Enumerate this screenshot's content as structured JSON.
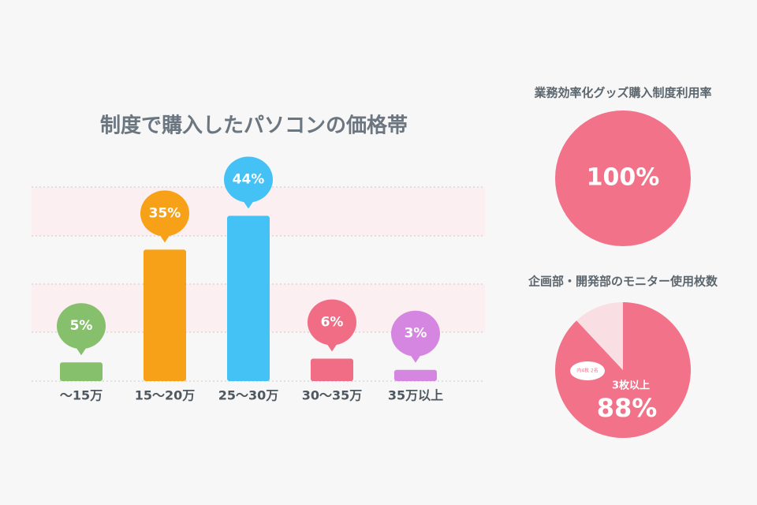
{
  "chart_data": [
    {
      "type": "bar",
      "title": "制度で購入したパソコンの価格帯",
      "categories": [
        "～15万",
        "15～20万",
        "25～30万",
        "30～35万",
        "35万以上"
      ],
      "values": [
        5,
        35,
        44,
        6,
        3
      ],
      "value_labels": [
        "5%",
        "35%",
        "44%",
        "6%",
        "3%"
      ],
      "colors": [
        "#86c06c",
        "#f6a117",
        "#45c2f5",
        "#f16d86",
        "#d586e0"
      ],
      "ylim": [
        0,
        50
      ]
    },
    {
      "type": "pie",
      "title": "業務効率化グッズ購入制度利用率",
      "values": [
        100
      ],
      "value_labels": [
        "100%"
      ],
      "colors": [
        "#f2728a"
      ]
    },
    {
      "type": "pie",
      "title": "企画部・開発部のモニター使用枚数",
      "categories": [
        "3枚以上",
        null
      ],
      "values": [
        88,
        12
      ],
      "value_labels": [
        "88%",
        null
      ],
      "colors": [
        "#f2728a",
        "#f9dfe3"
      ],
      "annotation": "内4枚 2名"
    }
  ]
}
